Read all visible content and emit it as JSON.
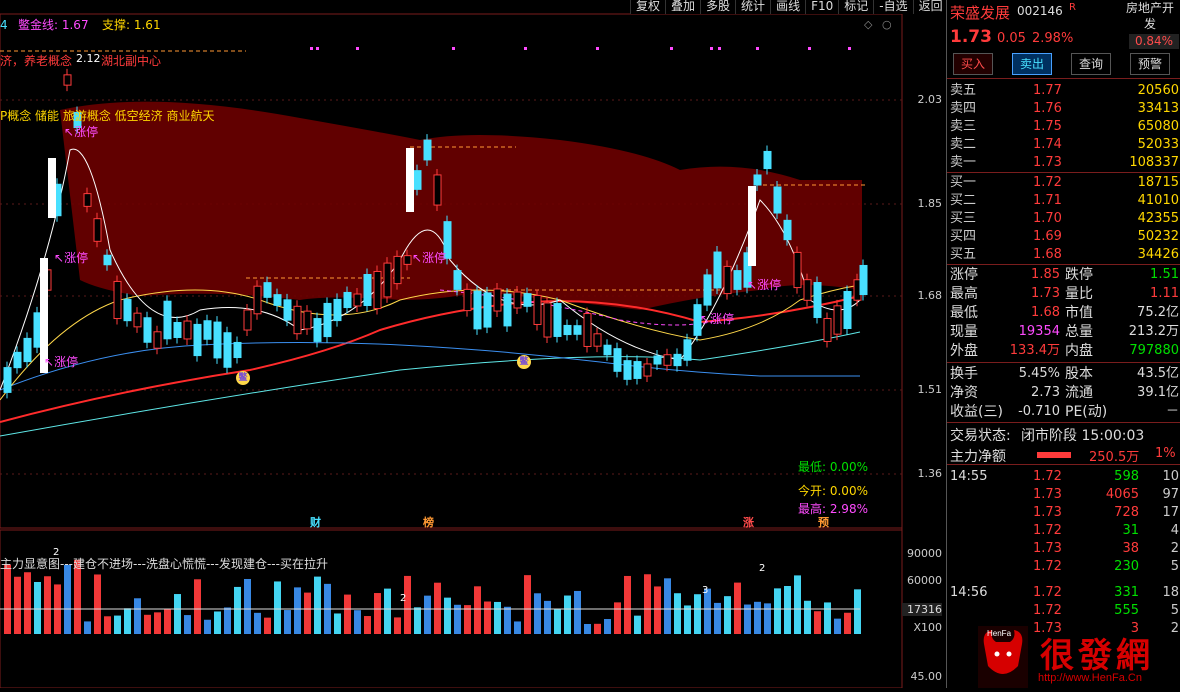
{
  "top_menu": [
    "复权",
    "叠加",
    "多股",
    "统计",
    "画线",
    "F10",
    "标记",
    "-自选",
    "返回"
  ],
  "indicator": {
    "num": "4",
    "gold_label": "鳖金线: 1.67",
    "support_label": "支撑: 1.61",
    "concept_line1": "济，养老概念",
    "concept_line2": "P概念 储能 旅游概念 低空经济 商业航天",
    "peak_label": "2.12",
    "industry_label": "湖北副中心"
  },
  "price_axis": [
    "2.03",
    "1.85",
    "1.68",
    "1.51",
    "1.36"
  ],
  "vol_axis": [
    "90000",
    "60000",
    "17316",
    "X100",
    "45.00"
  ],
  "limit_up_labels": [
    "涨停",
    "涨停",
    "涨停",
    "涨停",
    "涨停",
    "涨停"
  ],
  "event_markers": {
    "cai": "财",
    "bang": "榜",
    "zhang": "涨",
    "yu": "预",
    "bie": "鳖"
  },
  "day_stats": {
    "low": "最低: 0.00%",
    "open": "今开: 0.00%",
    "high": "最高: 2.98%"
  },
  "sub_indicator": {
    "text": "主力显意图---建仓不进场---洗盘心慌慌---发现建仓---买在拉升",
    "count2a": "2",
    "count2b": "2",
    "count3": "3",
    "count2c": "2"
  },
  "stock": {
    "name": "荣盛发展",
    "code": "002146",
    "flag": "R",
    "sector": "房地产开发",
    "sector_pct": "0.84%",
    "price": "1.73",
    "change": "0.05",
    "pct": "2.98%"
  },
  "buttons": [
    "买入",
    "卖出",
    "查询",
    "预警"
  ],
  "asks": [
    {
      "label": "卖五",
      "price": "1.77",
      "vol": "20560"
    },
    {
      "label": "卖四",
      "price": "1.76",
      "vol": "33413"
    },
    {
      "label": "卖三",
      "price": "1.75",
      "vol": "65080"
    },
    {
      "label": "卖二",
      "price": "1.74",
      "vol": "52033"
    },
    {
      "label": "卖一",
      "price": "1.73",
      "vol": "108337"
    }
  ],
  "bids": [
    {
      "label": "买一",
      "price": "1.72",
      "vol": "18715"
    },
    {
      "label": "买二",
      "price": "1.71",
      "vol": "41010"
    },
    {
      "label": "买三",
      "price": "1.70",
      "vol": "42355"
    },
    {
      "label": "买四",
      "price": "1.69",
      "vol": "50232"
    },
    {
      "label": "买五",
      "price": "1.68",
      "vol": "34426"
    }
  ],
  "stats": {
    "limit_up_l": "涨停",
    "limit_up": "1.85",
    "limit_down_l": "跌停",
    "limit_down": "1.51",
    "high_l": "最高",
    "high": "1.73",
    "vol_ratio_l": "量比",
    "vol_ratio": "1.11",
    "low_l": "最低",
    "low": "1.68",
    "mcap_l": "市值",
    "mcap": "75.2亿",
    "cur_vol_l": "现量",
    "cur_vol": "19354",
    "total_vol_l": "总量",
    "total_vol": "213.2万",
    "outer_l": "外盘",
    "outer": "133.4万",
    "inner_l": "内盘",
    "inner": "797880",
    "turnover_l": "换手",
    "turnover": "5.45%",
    "shares_l": "股本",
    "shares": "43.5亿",
    "nav_l": "净资",
    "nav": "2.73",
    "float_l": "流通",
    "float": "39.1亿",
    "eps_l": "收益(三)",
    "eps": "-0.710",
    "pe_l": "PE(动)",
    "pe": "－"
  },
  "status": {
    "label": "交易状态:",
    "value": "闭市阶段 15:00:03"
  },
  "main_flow": {
    "label": "主力净额",
    "value": "250.5万",
    "pct": "1%"
  },
  "ticks": [
    {
      "time": "14:55",
      "price": "1.72",
      "vol": "598",
      "n": "10",
      "c": "grn"
    },
    {
      "time": "",
      "price": "1.73",
      "vol": "4065",
      "n": "97",
      "c": "red"
    },
    {
      "time": "",
      "price": "1.73",
      "vol": "728",
      "n": "17",
      "c": "red"
    },
    {
      "time": "",
      "price": "1.72",
      "vol": "31",
      "n": "4",
      "c": "grn"
    },
    {
      "time": "",
      "price": "1.73",
      "vol": "38",
      "n": "2",
      "c": "red"
    },
    {
      "time": "",
      "price": "1.72",
      "vol": "230",
      "n": "5",
      "c": "grn"
    },
    {
      "time": "14:56",
      "price": "1.72",
      "vol": "331",
      "n": "18",
      "c": "grn"
    },
    {
      "time": "",
      "price": "1.72",
      "vol": "555",
      "n": "5",
      "c": "grn"
    },
    {
      "time": "",
      "price": "1.73",
      "vol": "3",
      "n": "2",
      "c": "red"
    }
  ],
  "watermark": {
    "brand": "HenFa",
    "cn": "很發網",
    "url": "http://www.HenFa.Cn"
  }
}
